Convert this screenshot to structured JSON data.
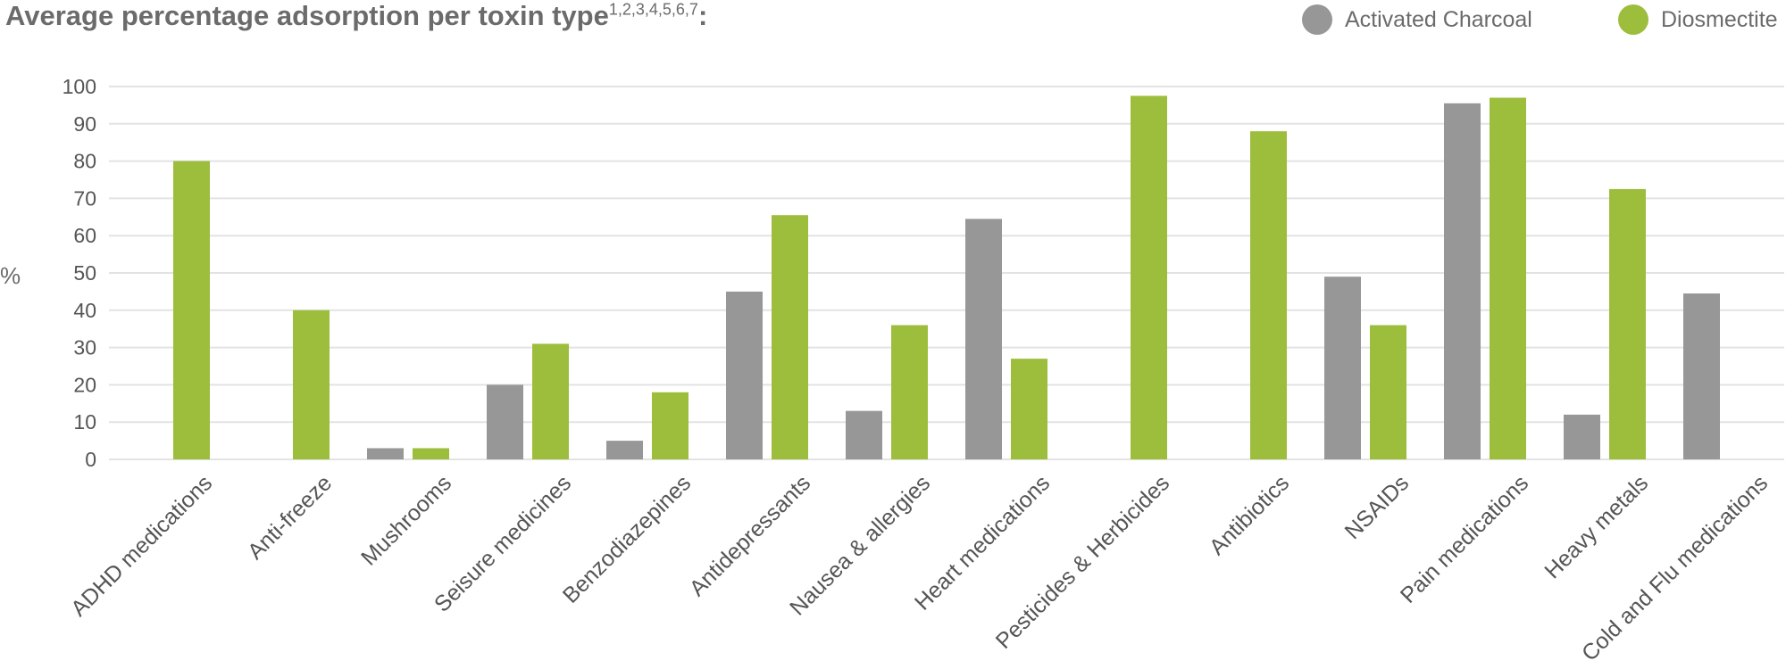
{
  "title": {
    "text": "Average percentage adsorption per toxin type",
    "superscript": "1,2,3,4,5,6,7",
    "suffix": ":"
  },
  "colors": {
    "charcoal": "#979797",
    "diosmectite": "#9dbd3c",
    "grid": "#e3e3e3",
    "text": "#6b6b6b"
  },
  "legend": [
    {
      "label": "Activated Charcoal",
      "color": "#979797"
    },
    {
      "label": "Diosmectite",
      "color": "#9dbd3c"
    }
  ],
  "y_unit": "%",
  "chart_data": {
    "type": "bar",
    "title": "Average percentage adsorption per toxin type1,2,3,4,5,6,7:",
    "ylabel": "%",
    "xlabel": "",
    "ylim": [
      0,
      100
    ],
    "yticks": [
      0,
      10,
      20,
      30,
      40,
      50,
      60,
      70,
      80,
      90,
      100
    ],
    "grid": true,
    "legend_position": "top-right",
    "categories": [
      "ADHD medications",
      "Anti-freeze",
      "Mushrooms",
      "Seisure medicines",
      "Benzodiazepines",
      "Antidepressants",
      "Nausea & allergies",
      "Heart medications",
      "Pesticides & Herbicides",
      "Antibiotics",
      "NSAIDs",
      "Pain medications",
      "Heavy metals",
      "Cold and Flu medications"
    ],
    "series": [
      {
        "name": "Activated Charcoal",
        "values": [
          null,
          null,
          3,
          20,
          5,
          45,
          13,
          64.5,
          null,
          null,
          49,
          95.5,
          12,
          44.5
        ]
      },
      {
        "name": "Diosmectite",
        "values": [
          80,
          40,
          3,
          31,
          18,
          65.5,
          36,
          27,
          97.5,
          88,
          36,
          97,
          72.5,
          null
        ]
      }
    ]
  }
}
